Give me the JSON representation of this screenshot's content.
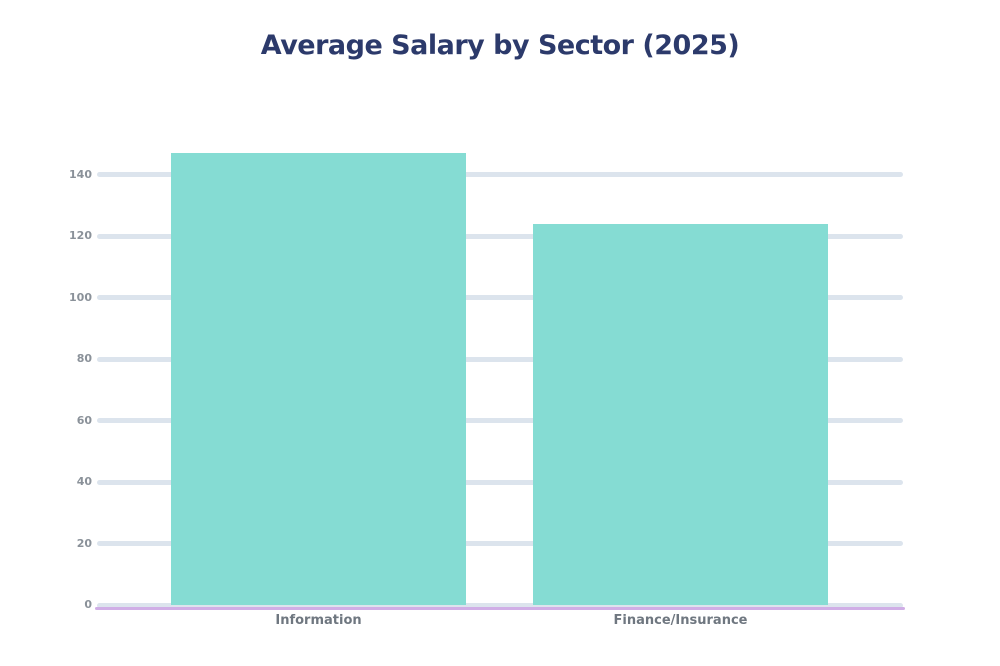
{
  "chart_data": {
    "type": "bar",
    "title": "Average Salary by Sector (2025)",
    "categories": [
      "Information",
      "Finance/Insurance"
    ],
    "values": [
      147,
      124
    ],
    "xlabel": "",
    "ylabel": "",
    "ylim": [
      0,
      140
    ],
    "yticks": [
      0,
      20,
      40,
      60,
      80,
      100,
      120,
      140
    ],
    "grid": true,
    "legend": "none"
  },
  "colors": {
    "background": "#ffffff",
    "title_text": "#2c3a6b",
    "bar_fill": "#85dcd3",
    "gridline": "#dce4ed",
    "axis_line": "#d0aee6",
    "tick_label_text": "#8a9199",
    "category_label_text": "#6f7780"
  }
}
